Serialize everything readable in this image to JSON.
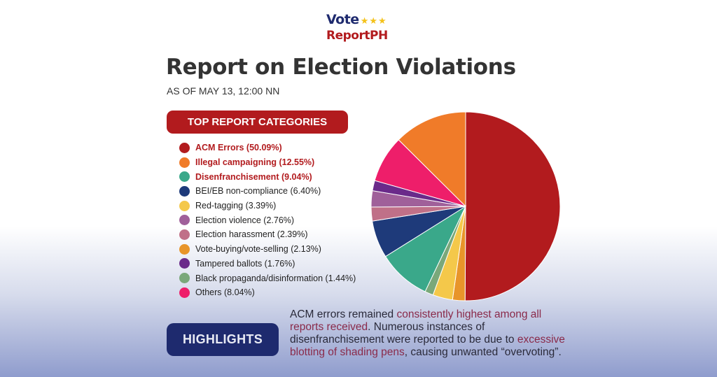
{
  "logo": {
    "line1": "Vote",
    "stars": "★★★",
    "line2": "ReportPH"
  },
  "title": "Report on Election Violations",
  "subtitle": "AS OF MAY 13, 12:00 NN",
  "categories_banner": "TOP REPORT CATEGORIES",
  "highlights_label": "HIGHLIGHTS",
  "highlights_text": {
    "p1": "ACM errors remained ",
    "e1": "consistently highest among all reports received",
    "p2": ". Numerous instances of disenfranchisement were reported to be due to ",
    "e2": "excessive blotting of shading pens",
    "p3": ", causing unwanted “overvoting”."
  },
  "chart_data": {
    "type": "pie",
    "title": "TOP REPORT CATEGORIES",
    "series": [
      {
        "label": "ACM Errors (50.09%)",
        "value": 50.09,
        "color": "#b21b1e",
        "highlight": true
      },
      {
        "label": "Illegal campaigning (12.55%)",
        "value": 12.55,
        "color": "#f07b29",
        "highlight": true
      },
      {
        "label": "Disenfranchisement (9.04%)",
        "value": 9.04,
        "color": "#3aa88a",
        "highlight": true
      },
      {
        "label": "BEI/EB non-compliance (6.40%)",
        "value": 6.4,
        "color": "#1e3a7a",
        "highlight": false
      },
      {
        "label": "Red-tagging (3.39%)",
        "value": 3.39,
        "color": "#f4c84a",
        "highlight": false
      },
      {
        "label": "Election violence (2.76%)",
        "value": 2.76,
        "color": "#a0609a",
        "highlight": false
      },
      {
        "label": "Election harassment (2.39%)",
        "value": 2.39,
        "color": "#c07088",
        "highlight": false
      },
      {
        "label": "Vote-buying/vote-selling (2.13%)",
        "value": 2.13,
        "color": "#e8952a",
        "highlight": false
      },
      {
        "label": "Tampered ballots (1.76%)",
        "value": 1.76,
        "color": "#6a2a8a",
        "highlight": false
      },
      {
        "label": "Black propaganda/disinformation (1.44%)",
        "value": 1.44,
        "color": "#7aa87a",
        "highlight": false
      },
      {
        "label": "Others (8.04%)",
        "value": 8.04,
        "color": "#ee1e6a",
        "highlight": false
      }
    ],
    "slice_order_clockwise_from_top": [
      0,
      7,
      4,
      9,
      2,
      3,
      6,
      5,
      8,
      10,
      1
    ]
  }
}
